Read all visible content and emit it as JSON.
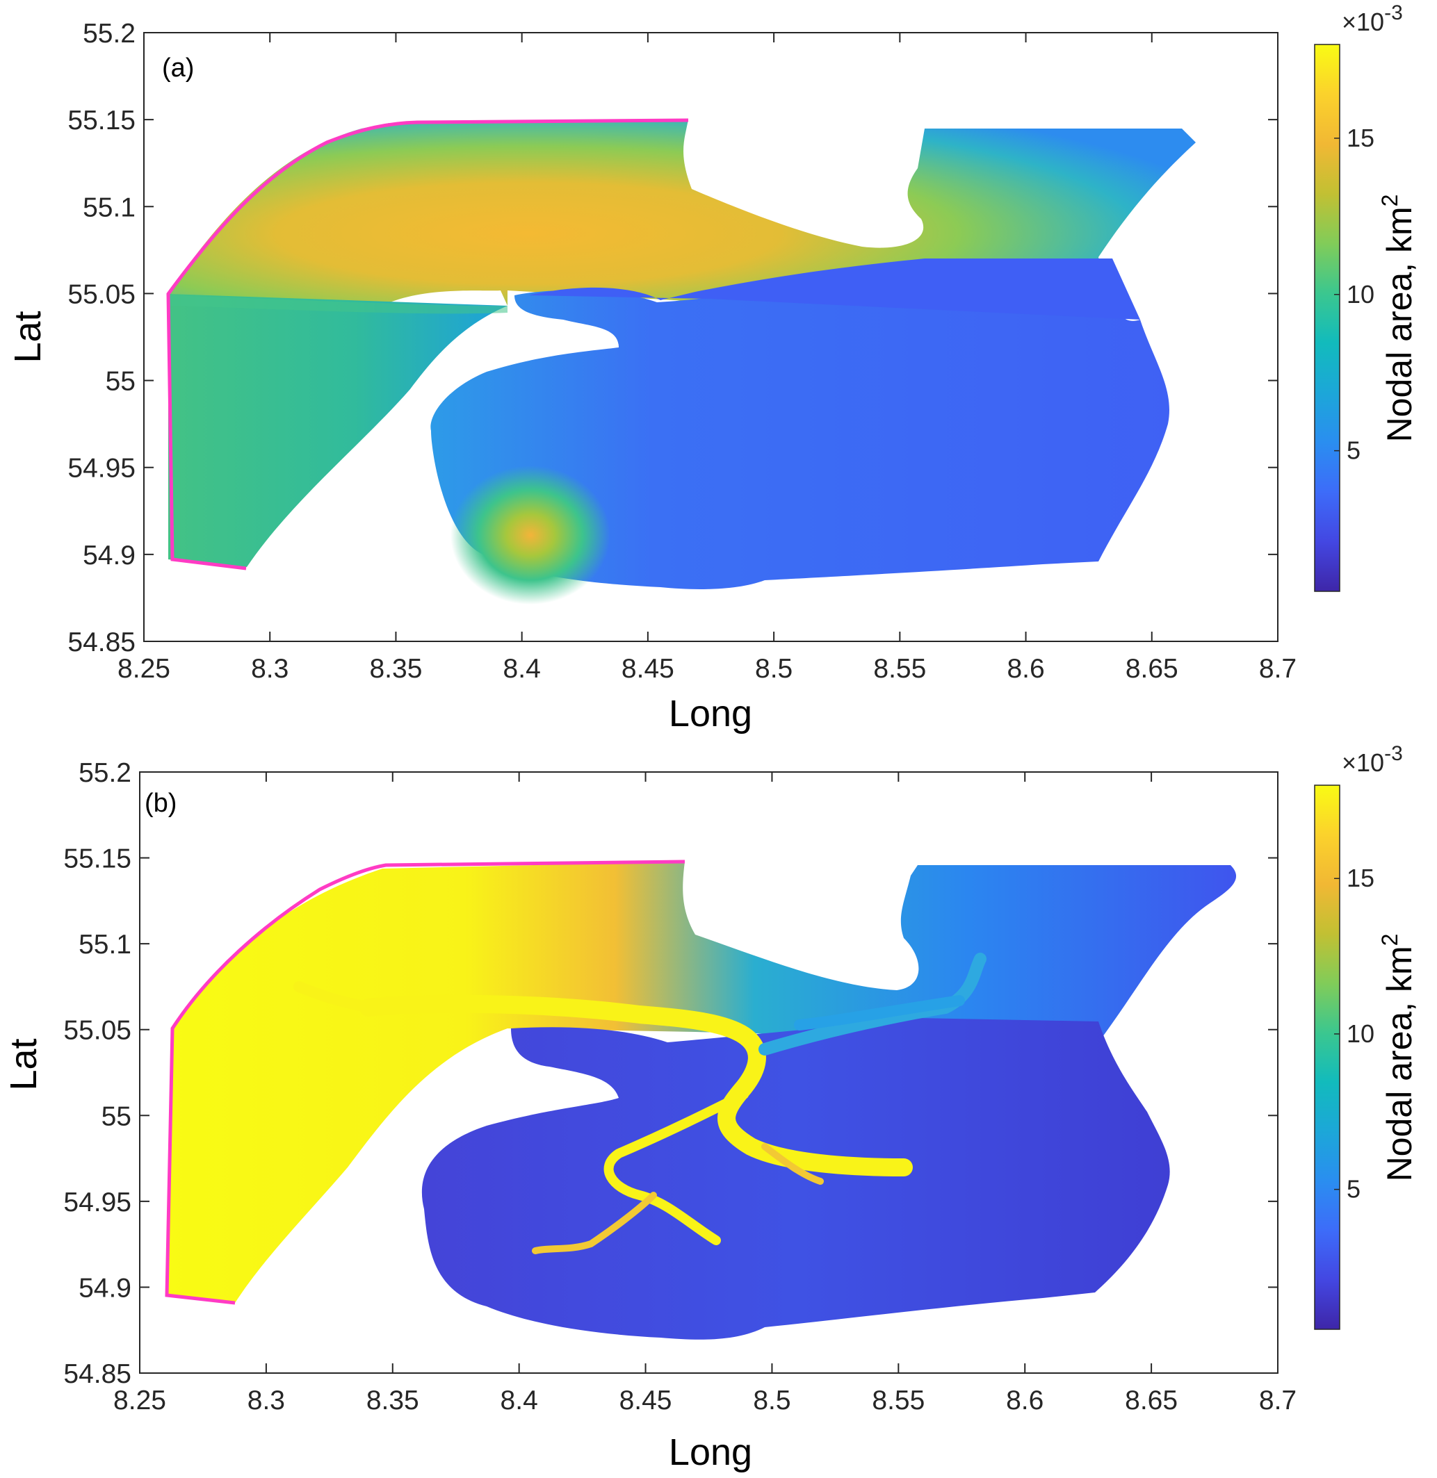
{
  "chart_data": [
    {
      "type": "heatmap",
      "panel_label": "(a)",
      "xlabel": "Long",
      "ylabel": "Lat",
      "xlim": [
        8.25,
        8.7
      ],
      "ylim": [
        54.85,
        55.2
      ],
      "xticks": [
        "8.25",
        "8.3",
        "8.35",
        "8.4",
        "8.45",
        "8.5",
        "8.55",
        "8.6",
        "8.65",
        "8.7"
      ],
      "yticks": [
        "54.85",
        "54.9",
        "54.95",
        "55",
        "55.05",
        "55.1",
        "55.15",
        "55.2"
      ],
      "colorbar": {
        "title": "Nodal area, km",
        "title_superscript": "2",
        "multiplier_base": "×10",
        "multiplier_exponent": "-3",
        "range": [
          0.5,
          18
        ],
        "ticks": [
          "5",
          "10",
          "15"
        ],
        "colormap": [
          "#3e26a8",
          "#4347e2",
          "#3d6cf9",
          "#2a8ef0",
          "#1ca7d8",
          "#12bbbc",
          "#3bc78f",
          "#81cc59",
          "#c2c033",
          "#f1b834",
          "#fbd22c",
          "#f9fb14"
        ]
      },
      "boundary_color": "#ff3bc4",
      "description_regions": {
        "offshore_north": 15,
        "offshore_south": 11,
        "inner_basin": 3,
        "southern_hotspot": 15
      }
    },
    {
      "type": "heatmap",
      "panel_label": "(b)",
      "xlabel": "Long",
      "ylabel": "Lat",
      "xlim": [
        8.25,
        8.7
      ],
      "ylim": [
        54.85,
        55.2
      ],
      "xticks": [
        "8.25",
        "8.3",
        "8.35",
        "8.4",
        "8.45",
        "8.5",
        "8.55",
        "8.6",
        "8.65",
        "8.7"
      ],
      "yticks": [
        "54.85",
        "54.9",
        "54.95",
        "55",
        "55.05",
        "55.1",
        "55.15",
        "55.2"
      ],
      "colorbar": {
        "title": "Nodal area, km",
        "title_superscript": "2",
        "multiplier_base": "×10",
        "multiplier_exponent": "-3",
        "range": [
          0.5,
          18
        ],
        "ticks": [
          "5",
          "10",
          "15"
        ],
        "colormap": [
          "#3e26a8",
          "#4347e2",
          "#3d6cf9",
          "#2a8ef0",
          "#1ca7d8",
          "#12bbbc",
          "#3bc78f",
          "#81cc59",
          "#c2c033",
          "#f1b834",
          "#fbd22c",
          "#f9fb14"
        ]
      },
      "boundary_color": "#ff3bc4",
      "description_regions": {
        "offshore_boundary": 18,
        "inner_basin": 1.5,
        "channels": 18
      }
    }
  ]
}
